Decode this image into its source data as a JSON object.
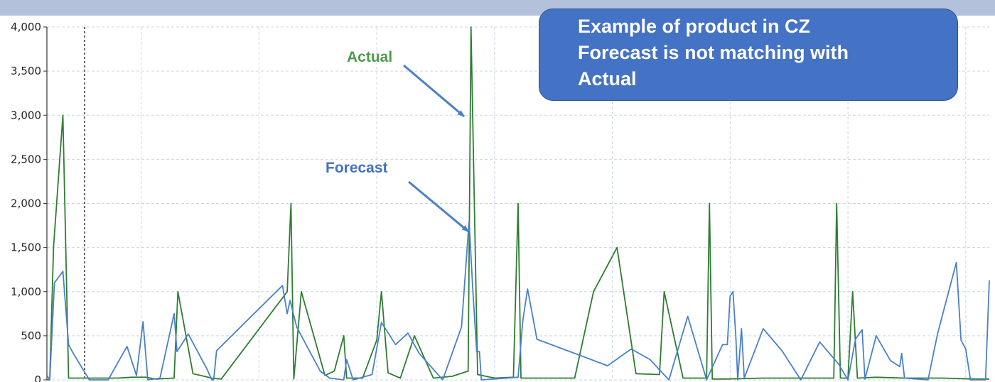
{
  "callout": {
    "lines": [
      "Example of product in CZ",
      "Forecast is not matching with",
      "Actual"
    ]
  },
  "annotations": {
    "actual": "Actual",
    "forecast": "Forecast"
  },
  "colors": {
    "actual": "#2e7d32",
    "forecast": "#4a80c8",
    "callout_fill": "#4472c4",
    "actual_label": "#4e9a4e",
    "forecast_label": "#4472c4",
    "arrow": "#4a80c8",
    "top_bar": "#b3c2da"
  },
  "chart_data": {
    "type": "line",
    "title": "",
    "xlabel": "",
    "ylabel": "",
    "ylim": [
      0,
      4000
    ],
    "y_ticks": [
      0,
      500,
      1000,
      1500,
      2000,
      2500,
      3000,
      3500,
      4000
    ],
    "y_tick_labels": [
      "0",
      "500",
      "1,000",
      "1,500",
      "2,000",
      "2,500",
      "3,000",
      "3,500",
      "4,000"
    ],
    "xlim": [
      0,
      1000
    ],
    "grid": true,
    "vertical_marker_x": 40,
    "series": [
      {
        "name": "Actual",
        "points": [
          [
            0,
            0
          ],
          [
            3,
            0
          ],
          [
            7,
            1500
          ],
          [
            17,
            3000
          ],
          [
            23,
            20
          ],
          [
            60,
            20
          ],
          [
            75,
            20
          ],
          [
            90,
            30
          ],
          [
            105,
            30
          ],
          [
            115,
            10
          ],
          [
            135,
            20
          ],
          [
            139,
            1000
          ],
          [
            155,
            70
          ],
          [
            175,
            20
          ],
          [
            185,
            10
          ],
          [
            255,
            1000
          ],
          [
            259,
            2000
          ],
          [
            262,
            10
          ],
          [
            270,
            1000
          ],
          [
            295,
            50
          ],
          [
            305,
            100
          ],
          [
            315,
            500
          ],
          [
            318,
            20
          ],
          [
            335,
            20
          ],
          [
            350,
            450
          ],
          [
            355,
            1000
          ],
          [
            362,
            80
          ],
          [
            375,
            20
          ],
          [
            390,
            500
          ],
          [
            410,
            20
          ],
          [
            430,
            40
          ],
          [
            447,
            100
          ],
          [
            450,
            4000
          ],
          [
            457,
            60
          ],
          [
            475,
            20
          ],
          [
            495,
            30
          ],
          [
            500,
            2000
          ],
          [
            503,
            20
          ],
          [
            530,
            20
          ],
          [
            560,
            20
          ],
          [
            580,
            1000
          ],
          [
            605,
            1500
          ],
          [
            625,
            70
          ],
          [
            650,
            60
          ],
          [
            655,
            1000
          ],
          [
            675,
            20
          ],
          [
            700,
            20
          ],
          [
            703,
            2000
          ],
          [
            706,
            10
          ],
          [
            720,
            10
          ],
          [
            760,
            20
          ],
          [
            800,
            20
          ],
          [
            835,
            20
          ],
          [
            838,
            2000
          ],
          [
            842,
            20
          ],
          [
            850,
            20
          ],
          [
            855,
            1000
          ],
          [
            860,
            20
          ],
          [
            880,
            30
          ],
          [
            910,
            20
          ],
          [
            950,
            20
          ],
          [
            985,
            10
          ],
          [
            1000,
            10
          ]
        ]
      },
      {
        "name": "Forecast",
        "points": [
          [
            0,
            50
          ],
          [
            3,
            0
          ],
          [
            8,
            1100
          ],
          [
            17,
            1230
          ],
          [
            23,
            400
          ],
          [
            28,
            300
          ],
          [
            45,
            0
          ],
          [
            65,
            0
          ],
          [
            85,
            380
          ],
          [
            95,
            50
          ],
          [
            102,
            660
          ],
          [
            107,
            0
          ],
          [
            120,
            20
          ],
          [
            135,
            750
          ],
          [
            138,
            320
          ],
          [
            150,
            520
          ],
          [
            170,
            120
          ],
          [
            175,
            0
          ],
          [
            177,
            0
          ],
          [
            180,
            330
          ],
          [
            250,
            1070
          ],
          [
            255,
            750
          ],
          [
            258,
            900
          ],
          [
            265,
            600
          ],
          [
            290,
            100
          ],
          [
            300,
            20
          ],
          [
            315,
            0
          ],
          [
            318,
            230
          ],
          [
            325,
            0
          ],
          [
            345,
            60
          ],
          [
            355,
            650
          ],
          [
            370,
            400
          ],
          [
            383,
            530
          ],
          [
            395,
            300
          ],
          [
            420,
            0
          ],
          [
            440,
            600
          ],
          [
            448,
            1800
          ],
          [
            452,
            1000
          ],
          [
            456,
            320
          ],
          [
            459,
            320
          ],
          [
            461,
            0
          ],
          [
            500,
            30
          ],
          [
            505,
            670
          ],
          [
            510,
            1030
          ],
          [
            520,
            460
          ],
          [
            595,
            160
          ],
          [
            620,
            350
          ],
          [
            640,
            230
          ],
          [
            660,
            0
          ],
          [
            680,
            720
          ],
          [
            700,
            0
          ],
          [
            717,
            400
          ],
          [
            722,
            400
          ],
          [
            725,
            950
          ],
          [
            728,
            1000
          ],
          [
            731,
            500
          ],
          [
            733,
            0
          ],
          [
            737,
            580
          ],
          [
            740,
            20
          ],
          [
            760,
            580
          ],
          [
            780,
            330
          ],
          [
            800,
            0
          ],
          [
            820,
            430
          ],
          [
            840,
            180
          ],
          [
            850,
            0
          ],
          [
            858,
            460
          ],
          [
            865,
            570
          ],
          [
            868,
            10
          ],
          [
            880,
            500
          ],
          [
            895,
            220
          ],
          [
            905,
            150
          ],
          [
            907,
            300
          ],
          [
            910,
            20
          ],
          [
            935,
            0
          ],
          [
            945,
            520
          ],
          [
            965,
            1330
          ],
          [
            970,
            450
          ],
          [
            975,
            350
          ],
          [
            980,
            0
          ],
          [
            996,
            0
          ],
          [
            1000,
            1130
          ]
        ]
      }
    ]
  }
}
